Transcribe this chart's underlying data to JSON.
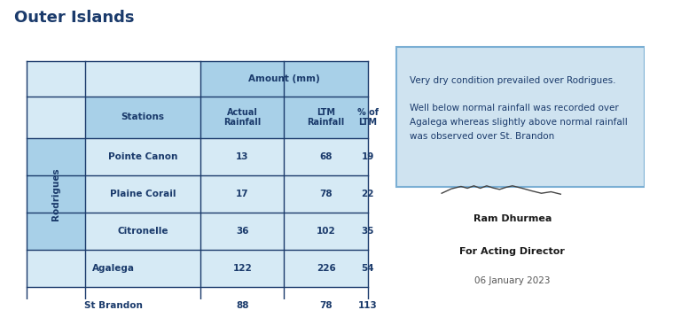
{
  "title": "Outer Islands",
  "title_color": "#1a3a6b",
  "title_fontsize": 13,
  "rodrigues_label": "Rodrigues",
  "rodrigues_rows": [
    [
      "Pointe Canon",
      "13",
      "68",
      "19"
    ],
    [
      "Plaine Corail",
      "17",
      "78",
      "22"
    ],
    [
      "Citronelle",
      "36",
      "102",
      "35"
    ]
  ],
  "other_rows": [
    [
      "Agalega",
      "122",
      "226",
      "54"
    ],
    [
      "St Brandon",
      "88",
      "78",
      "113"
    ]
  ],
  "text_box_lines": [
    "Very dry condition prevailed over Rodrigues.",
    "",
    "Well below normal rainfall was recorded over",
    "Agalega whereas slightly above normal rainfall",
    "was observed over St. Brandon"
  ],
  "text_box_bg": "#cfe3f0",
  "text_box_border": "#7bafd4",
  "table_header_bg": "#a8d0e8",
  "table_row_bg": "#d6eaf5",
  "table_border_color": "#1a3a6b",
  "table_text_color": "#1a3a6b",
  "signature_text": "Ram Dhurmea",
  "role_text": "For Acting Director",
  "date_text": "06 January 2023",
  "background_color": "#ffffff"
}
